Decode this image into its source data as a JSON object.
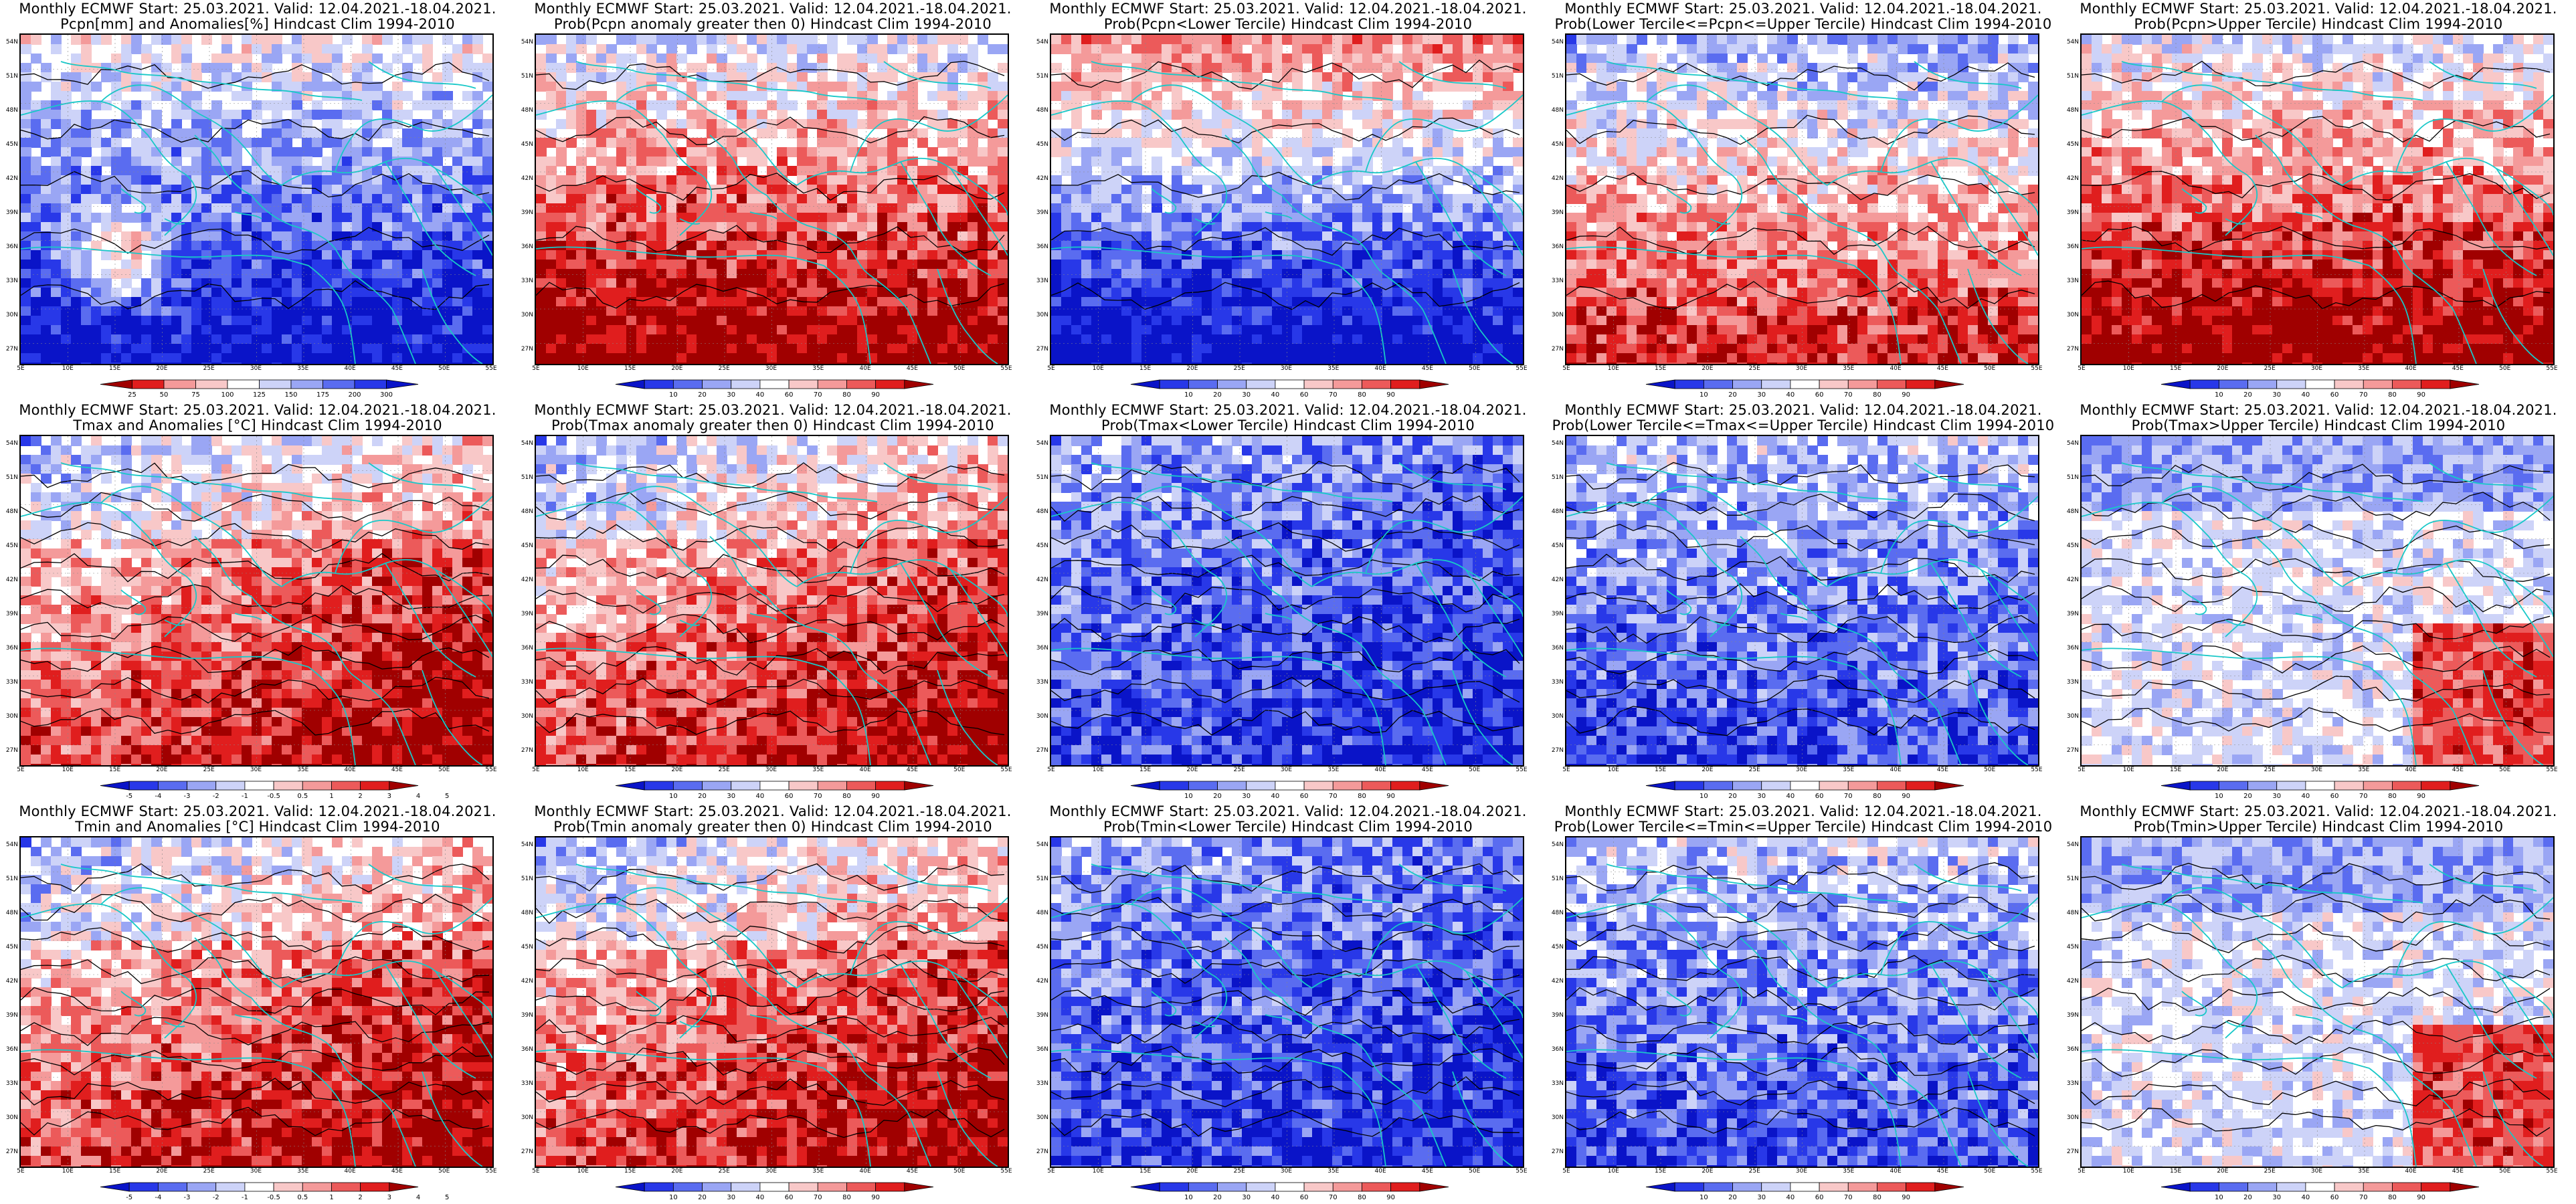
{
  "figure": {
    "title_line1": "Monthly ECMWF Start: 25.03.2021. Valid: 12.04.2021.-18.04.2021.",
    "lat_labels": [
      "54N",
      "51N",
      "48N",
      "45N",
      "42N",
      "39N",
      "36N",
      "33N",
      "30N",
      "27N"
    ],
    "lon_labels": [
      "5E",
      "10E",
      "15E",
      "20E",
      "25E",
      "30E",
      "35E",
      "40E",
      "45E",
      "50E",
      "55E"
    ],
    "colors": {
      "deep_blue": "#0a14c8",
      "blue": "#2838e8",
      "mid_blue": "#5a6cf0",
      "light_blue": "#9aa6f4",
      "pale_blue": "#cdd3f8",
      "white": "#ffffff",
      "pale_red": "#f8c8c8",
      "light_red": "#f49a9a",
      "mid_red": "#ec5a5a",
      "red": "#e01e1e",
      "dark_red": "#a00000",
      "coast": "#18c8c8",
      "contour": "#000000"
    },
    "panels": [
      {
        "id": "pcpn-anom",
        "title2": "Pcpn[mm] and Anomalies[%] Hindcast Clim 1994-2010",
        "kind": "pcpn",
        "cbar": [
          "25",
          "50",
          "75",
          "100",
          "125",
          "150",
          "175",
          "200",
          "300"
        ]
      },
      {
        "id": "pcpn-prob-pos",
        "title2": "Prob(Pcpn anomaly greater then 0) Hindcast Clim 1994-2010",
        "kind": "pcpnprob",
        "cbar": [
          "10",
          "20",
          "30",
          "40",
          "60",
          "70",
          "80",
          "90"
        ]
      },
      {
        "id": "pcpn-prob-low",
        "title2": "Prob(Pcpn<Lower Tercile) Hindcast Clim 1994-2010",
        "kind": "pcpnlow",
        "cbar": [
          "10",
          "20",
          "30",
          "40",
          "60",
          "70",
          "80",
          "90"
        ]
      },
      {
        "id": "pcpn-prob-mid",
        "title2": "Prob(Lower Tercile<=Pcpn<=Upper Tercile) Hindcast Clim 1994-2010",
        "kind": "pcpnmid",
        "cbar": [
          "10",
          "20",
          "30",
          "40",
          "60",
          "70",
          "80",
          "90"
        ]
      },
      {
        "id": "pcpn-prob-up",
        "title2": "Prob(Pcpn>Upper Tercile) Hindcast Clim 1994-2010",
        "kind": "pcpnprob",
        "cbar": [
          "10",
          "20",
          "30",
          "40",
          "60",
          "70",
          "80",
          "90"
        ]
      },
      {
        "id": "tmax-anom",
        "title2": "Tmax and Anomalies [°C] Hindcast Clim 1994-2010",
        "kind": "tanom",
        "cbar": [
          "-5",
          "-4",
          "-3",
          "-2",
          "-1",
          "-0.5",
          "0.5",
          "1",
          "2",
          "3",
          "4",
          "5"
        ]
      },
      {
        "id": "tmax-prob-pos",
        "title2": "Prob(Tmax anomaly greater then 0) Hindcast Clim 1994-2010",
        "kind": "tprob",
        "cbar": [
          "10",
          "20",
          "30",
          "40",
          "60",
          "70",
          "80",
          "90"
        ]
      },
      {
        "id": "tmax-prob-low",
        "title2": "Prob(Tmax<Lower Tercile) Hindcast Clim 1994-2010",
        "kind": "tlow",
        "cbar": [
          "10",
          "20",
          "30",
          "40",
          "60",
          "70",
          "80",
          "90"
        ]
      },
      {
        "id": "tmax-prob-mid",
        "title2": "Prob(Lower Tercile<=Tmax<=Upper Tercile) Hindcast Clim 1994-2010",
        "kind": "tmid",
        "cbar": [
          "10",
          "20",
          "30",
          "40",
          "60",
          "70",
          "80",
          "90"
        ]
      },
      {
        "id": "tmax-prob-up",
        "title2": "Prob(Tmax>Upper Tercile) Hindcast Clim 1994-2010",
        "kind": "tup",
        "cbar": [
          "10",
          "20",
          "30",
          "40",
          "60",
          "70",
          "80",
          "90"
        ]
      },
      {
        "id": "tmin-anom",
        "title2": "Tmin and Anomalies [°C] Hindcast Clim 1994-2010",
        "kind": "tanom",
        "cbar": [
          "-5",
          "-4",
          "-3",
          "-2",
          "-1",
          "-0.5",
          "0.5",
          "1",
          "2",
          "3",
          "4",
          "5"
        ]
      },
      {
        "id": "tmin-prob-pos",
        "title2": "Prob(Tmin anomaly greater then 0) Hindcast Clim 1994-2010",
        "kind": "tprob",
        "cbar": [
          "10",
          "20",
          "30",
          "40",
          "60",
          "70",
          "80",
          "90"
        ]
      },
      {
        "id": "tmin-prob-low",
        "title2": "Prob(Tmin<Lower Tercile) Hindcast Clim 1994-2010",
        "kind": "tlow",
        "cbar": [
          "10",
          "20",
          "30",
          "40",
          "60",
          "70",
          "80",
          "90"
        ]
      },
      {
        "id": "tmin-prob-mid",
        "title2": "Prob(Lower Tercile<=Tmin<=Upper Tercile) Hindcast Clim 1994-2010",
        "kind": "tmid",
        "cbar": [
          "10",
          "20",
          "30",
          "40",
          "60",
          "70",
          "80",
          "90"
        ]
      },
      {
        "id": "tmin-prob-up",
        "title2": "Prob(Tmin>Upper Tercile) Hindcast Clim 1994-2010",
        "kind": "tup",
        "cbar": [
          "10",
          "20",
          "30",
          "40",
          "60",
          "70",
          "80",
          "90"
        ]
      }
    ]
  }
}
